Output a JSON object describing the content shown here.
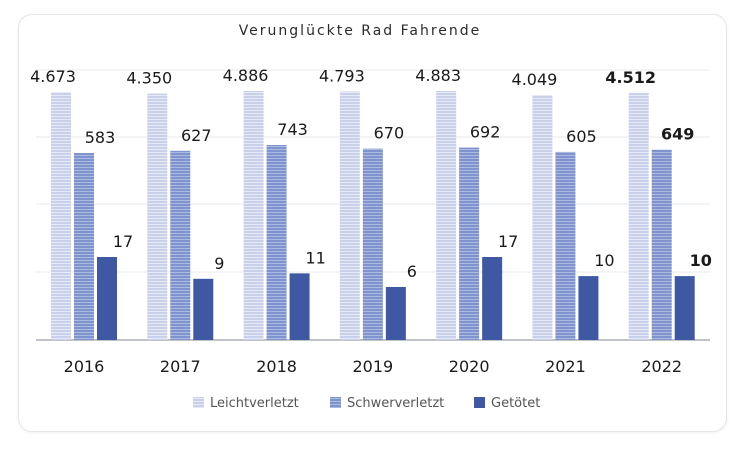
{
  "chart_data": {
    "type": "bar",
    "title": "Verunglückte Rad Fahrende",
    "categories": [
      "2016",
      "2017",
      "2018",
      "2019",
      "2020",
      "2021",
      "2022"
    ],
    "series": [
      {
        "name": "Leichtverletzt",
        "values": [
          4673,
          4350,
          4886,
          4793,
          4883,
          4049,
          4512
        ],
        "labels": [
          "4.673",
          "4.350",
          "4.886",
          "4.793",
          "4.883",
          "4.049",
          "4.512"
        ],
        "color": "#c9d1ea"
      },
      {
        "name": "Schwerverletzt",
        "values": [
          583,
          627,
          743,
          670,
          692,
          605,
          649
        ],
        "labels": [
          "583",
          "627",
          "743",
          "670",
          "692",
          "605",
          "649"
        ],
        "color": "#7f94cf"
      },
      {
        "name": "Getötet",
        "values": [
          17,
          9,
          11,
          6,
          17,
          10,
          10
        ],
        "labels": [
          "17",
          "9",
          "11",
          "6",
          "17",
          "10",
          "10"
        ],
        "color": "#3f58a3"
      }
    ],
    "highlight_category": "2022",
    "legend_position": "bottom",
    "grid": true
  }
}
